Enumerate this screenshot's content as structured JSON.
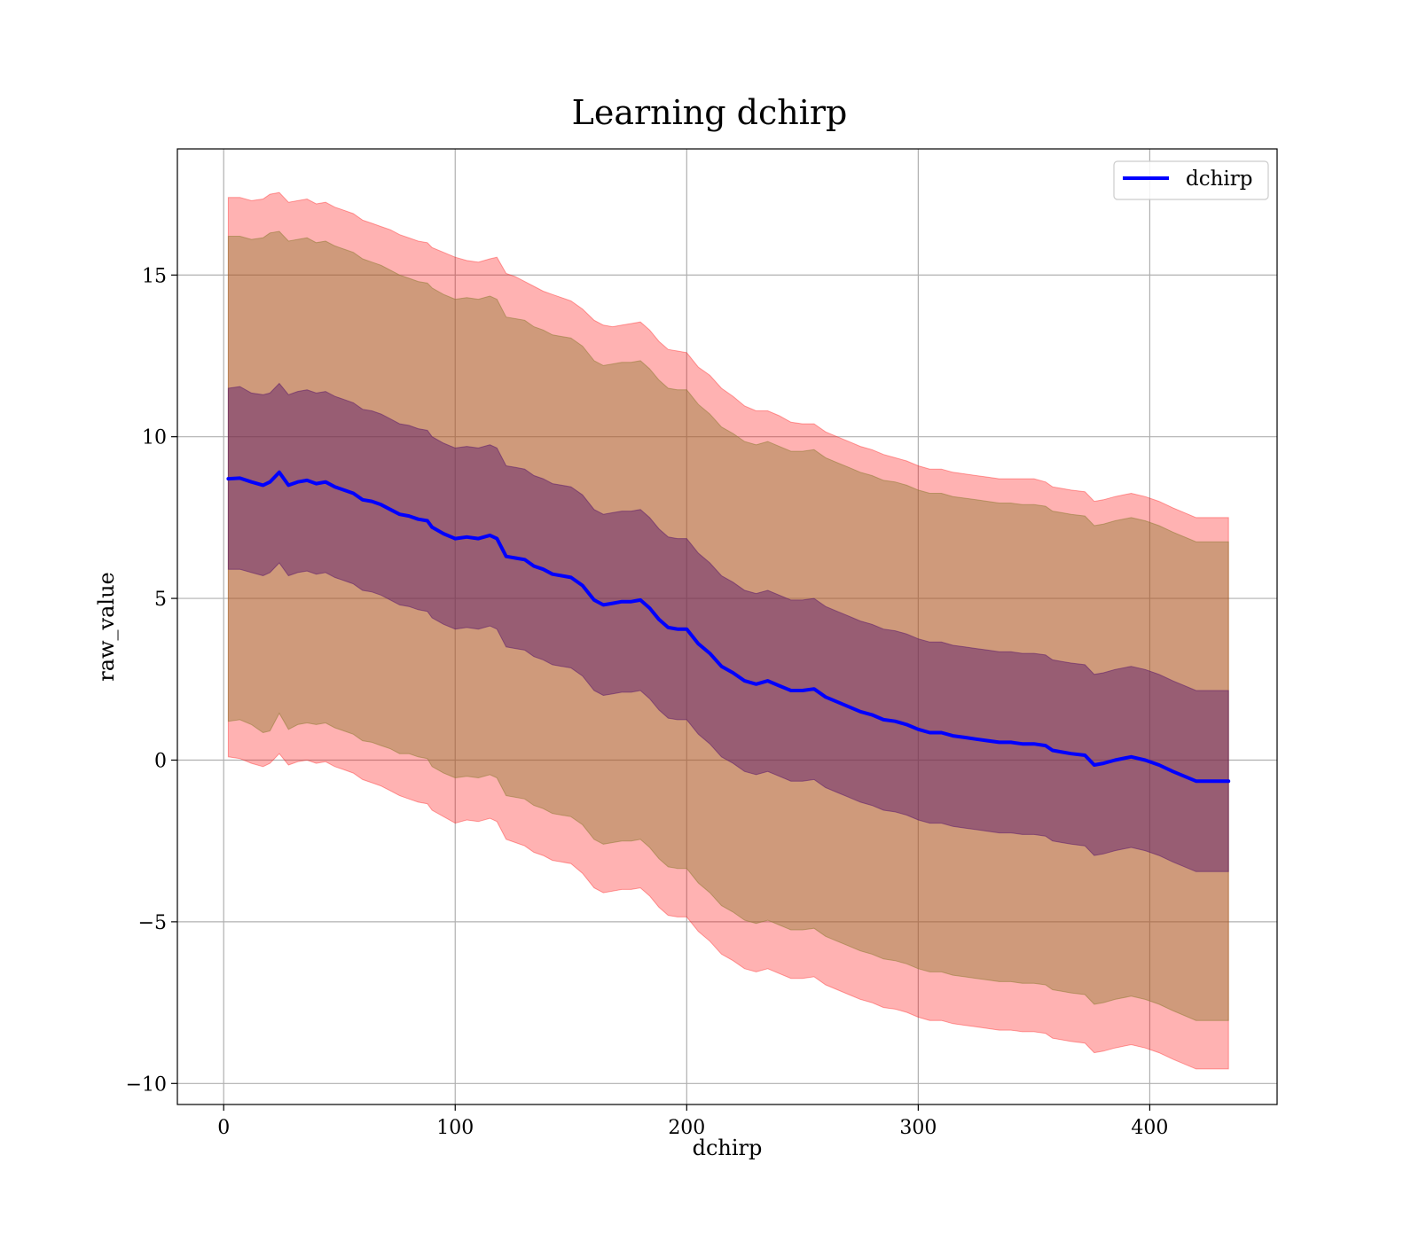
{
  "chart_data": {
    "type": "line",
    "title": "Learning dchirp",
    "xlabel": "dchirp",
    "ylabel": "raw_value",
    "xlim": [
      -20,
      455
    ],
    "ylim": [
      -10.65,
      18.9
    ],
    "xticks": [
      0,
      100,
      200,
      300,
      400
    ],
    "yticks": [
      -10,
      -5,
      0,
      5,
      10,
      15
    ],
    "xtick_labels": [
      "0",
      "100",
      "200",
      "300",
      "400"
    ],
    "ytick_labels": [
      "−10",
      "−5",
      "0",
      "5",
      "10",
      "15"
    ],
    "grid": true,
    "legend": {
      "position": "upper right",
      "entries": [
        "dchirp"
      ]
    },
    "colors": {
      "line": "#0000ff",
      "band_outer": "#ff0000",
      "band_middle": "#8c7a30",
      "band_inner": "#55146a"
    },
    "band_alpha": {
      "outer": 0.3,
      "middle": 0.42,
      "inner": 0.45
    },
    "series": [
      {
        "name": "dchirp",
        "x": [
          2,
          7,
          12,
          17,
          20,
          24,
          28,
          32,
          36,
          40,
          44,
          48,
          52,
          56,
          60,
          64,
          68,
          72,
          76,
          80,
          84,
          88,
          90,
          95,
          100,
          105,
          110,
          115,
          118,
          122,
          126,
          130,
          134,
          138,
          142,
          146,
          150,
          155,
          160,
          164,
          168,
          172,
          176,
          180,
          184,
          188,
          192,
          196,
          200,
          205,
          210,
          215,
          220,
          225,
          230,
          235,
          240,
          245,
          250,
          255,
          260,
          265,
          270,
          275,
          280,
          285,
          290,
          295,
          300,
          305,
          310,
          315,
          320,
          325,
          330,
          335,
          340,
          345,
          350,
          355,
          358,
          362,
          366,
          372,
          376,
          380,
          385,
          392,
          398,
          404,
          410,
          420,
          434
        ],
        "mean": [
          8.7,
          8.72,
          8.6,
          8.5,
          8.6,
          8.9,
          8.5,
          8.6,
          8.65,
          8.55,
          8.6,
          8.45,
          8.35,
          8.25,
          8.05,
          8.0,
          7.9,
          7.75,
          7.6,
          7.55,
          7.45,
          7.4,
          7.2,
          7.0,
          6.85,
          6.9,
          6.85,
          6.95,
          6.85,
          6.3,
          6.25,
          6.2,
          6.0,
          5.9,
          5.75,
          5.7,
          5.65,
          5.4,
          4.95,
          4.8,
          4.85,
          4.9,
          4.9,
          4.95,
          4.7,
          4.35,
          4.1,
          4.05,
          4.05,
          3.6,
          3.3,
          2.9,
          2.7,
          2.45,
          2.35,
          2.45,
          2.3,
          2.15,
          2.15,
          2.2,
          1.95,
          1.8,
          1.65,
          1.5,
          1.4,
          1.25,
          1.2,
          1.1,
          0.95,
          0.85,
          0.85,
          0.75,
          0.7,
          0.65,
          0.6,
          0.55,
          0.55,
          0.5,
          0.5,
          0.45,
          0.3,
          0.25,
          0.2,
          0.15,
          -0.15,
          -0.1,
          0.0,
          0.1,
          0.0,
          -0.15,
          -0.35,
          -0.65,
          -0.65
        ],
        "outer_upper": [
          17.4,
          17.4,
          17.3,
          17.35,
          17.5,
          17.55,
          17.25,
          17.3,
          17.35,
          17.2,
          17.25,
          17.1,
          17.0,
          16.9,
          16.7,
          16.6,
          16.5,
          16.4,
          16.25,
          16.15,
          16.05,
          16.0,
          15.85,
          15.7,
          15.55,
          15.45,
          15.4,
          15.5,
          15.55,
          15.05,
          14.95,
          14.8,
          14.65,
          14.5,
          14.4,
          14.3,
          14.2,
          13.95,
          13.6,
          13.45,
          13.4,
          13.45,
          13.5,
          13.55,
          13.3,
          12.95,
          12.7,
          12.65,
          12.6,
          12.15,
          11.9,
          11.5,
          11.25,
          10.95,
          10.8,
          10.8,
          10.65,
          10.45,
          10.4,
          10.4,
          10.15,
          10.0,
          9.85,
          9.7,
          9.6,
          9.45,
          9.35,
          9.25,
          9.1,
          9.0,
          9.0,
          8.9,
          8.85,
          8.8,
          8.75,
          8.7,
          8.7,
          8.7,
          8.7,
          8.6,
          8.45,
          8.4,
          8.35,
          8.3,
          8.0,
          8.05,
          8.15,
          8.25,
          8.15,
          8.0,
          7.8,
          7.5,
          7.5
        ],
        "outer_lower": [
          0.1,
          0.05,
          -0.1,
          -0.2,
          -0.1,
          0.2,
          -0.15,
          -0.05,
          0.0,
          -0.1,
          -0.05,
          -0.2,
          -0.3,
          -0.4,
          -0.6,
          -0.7,
          -0.8,
          -0.95,
          -1.1,
          -1.2,
          -1.3,
          -1.35,
          -1.55,
          -1.75,
          -1.95,
          -1.85,
          -1.9,
          -1.8,
          -1.9,
          -2.45,
          -2.55,
          -2.65,
          -2.85,
          -2.95,
          -3.1,
          -3.15,
          -3.2,
          -3.5,
          -3.95,
          -4.1,
          -4.05,
          -4.0,
          -4.0,
          -3.95,
          -4.2,
          -4.55,
          -4.8,
          -4.85,
          -4.85,
          -5.3,
          -5.6,
          -6.0,
          -6.2,
          -6.45,
          -6.55,
          -6.45,
          -6.6,
          -6.75,
          -6.75,
          -6.7,
          -6.95,
          -7.1,
          -7.25,
          -7.4,
          -7.5,
          -7.65,
          -7.7,
          -7.8,
          -7.95,
          -8.05,
          -8.05,
          -8.15,
          -8.2,
          -8.25,
          -8.3,
          -8.35,
          -8.35,
          -8.4,
          -8.4,
          -8.45,
          -8.6,
          -8.65,
          -8.7,
          -8.75,
          -9.05,
          -9.0,
          -8.9,
          -8.8,
          -8.9,
          -9.05,
          -9.25,
          -9.55,
          -9.55
        ],
        "middle_upper": [
          16.2,
          16.2,
          16.1,
          16.15,
          16.3,
          16.35,
          16.05,
          16.1,
          16.15,
          16.0,
          16.05,
          15.9,
          15.8,
          15.7,
          15.5,
          15.4,
          15.3,
          15.15,
          15.0,
          14.9,
          14.8,
          14.75,
          14.6,
          14.4,
          14.25,
          14.3,
          14.25,
          14.35,
          14.25,
          13.7,
          13.65,
          13.6,
          13.4,
          13.3,
          13.15,
          13.1,
          13.05,
          12.8,
          12.35,
          12.2,
          12.25,
          12.3,
          12.3,
          12.35,
          12.1,
          11.75,
          11.5,
          11.45,
          11.45,
          11.0,
          10.7,
          10.3,
          10.1,
          9.85,
          9.75,
          9.85,
          9.7,
          9.55,
          9.55,
          9.6,
          9.35,
          9.2,
          9.05,
          8.9,
          8.8,
          8.65,
          8.6,
          8.5,
          8.35,
          8.25,
          8.25,
          8.15,
          8.1,
          8.05,
          8.0,
          7.95,
          7.95,
          7.9,
          7.9,
          7.85,
          7.7,
          7.65,
          7.6,
          7.55,
          7.25,
          7.3,
          7.4,
          7.5,
          7.4,
          7.25,
          7.05,
          6.75,
          6.75
        ],
        "middle_lower": [
          1.2,
          1.25,
          1.1,
          0.85,
          0.9,
          1.45,
          0.95,
          1.1,
          1.15,
          1.1,
          1.15,
          1.0,
          0.9,
          0.8,
          0.6,
          0.55,
          0.45,
          0.35,
          0.2,
          0.2,
          0.1,
          0.05,
          -0.2,
          -0.4,
          -0.55,
          -0.5,
          -0.55,
          -0.45,
          -0.55,
          -1.1,
          -1.15,
          -1.2,
          -1.4,
          -1.5,
          -1.65,
          -1.7,
          -1.75,
          -2.0,
          -2.45,
          -2.6,
          -2.55,
          -2.5,
          -2.5,
          -2.45,
          -2.7,
          -3.05,
          -3.3,
          -3.35,
          -3.35,
          -3.8,
          -4.1,
          -4.5,
          -4.7,
          -4.95,
          -5.05,
          -4.95,
          -5.1,
          -5.25,
          -5.25,
          -5.2,
          -5.45,
          -5.6,
          -5.75,
          -5.9,
          -6.0,
          -6.15,
          -6.2,
          -6.3,
          -6.45,
          -6.55,
          -6.55,
          -6.65,
          -6.7,
          -6.75,
          -6.8,
          -6.85,
          -6.85,
          -6.9,
          -6.9,
          -6.95,
          -7.1,
          -7.15,
          -7.2,
          -7.25,
          -7.55,
          -7.5,
          -7.4,
          -7.3,
          -7.4,
          -7.55,
          -7.75,
          -8.05,
          -8.05
        ],
        "inner_upper": [
          11.5,
          11.55,
          11.35,
          11.3,
          11.35,
          11.65,
          11.3,
          11.4,
          11.45,
          11.35,
          11.4,
          11.25,
          11.15,
          11.05,
          10.85,
          10.8,
          10.7,
          10.55,
          10.4,
          10.35,
          10.25,
          10.2,
          10.0,
          9.8,
          9.65,
          9.7,
          9.65,
          9.75,
          9.65,
          9.1,
          9.05,
          9.0,
          8.8,
          8.7,
          8.55,
          8.5,
          8.45,
          8.2,
          7.75,
          7.6,
          7.65,
          7.7,
          7.7,
          7.75,
          7.5,
          7.15,
          6.9,
          6.85,
          6.85,
          6.4,
          6.1,
          5.7,
          5.5,
          5.25,
          5.15,
          5.25,
          5.1,
          4.95,
          4.95,
          5.0,
          4.75,
          4.6,
          4.45,
          4.3,
          4.2,
          4.05,
          4.0,
          3.9,
          3.75,
          3.65,
          3.65,
          3.55,
          3.5,
          3.45,
          3.4,
          3.35,
          3.35,
          3.3,
          3.3,
          3.25,
          3.1,
          3.05,
          3.0,
          2.95,
          2.65,
          2.7,
          2.8,
          2.9,
          2.8,
          2.65,
          2.45,
          2.15,
          2.15
        ],
        "inner_lower": [
          5.9,
          5.9,
          5.8,
          5.7,
          5.8,
          6.1,
          5.7,
          5.8,
          5.85,
          5.75,
          5.8,
          5.65,
          5.55,
          5.45,
          5.25,
          5.2,
          5.1,
          4.95,
          4.8,
          4.75,
          4.65,
          4.6,
          4.4,
          4.2,
          4.05,
          4.1,
          4.05,
          4.15,
          4.05,
          3.5,
          3.45,
          3.4,
          3.2,
          3.1,
          2.95,
          2.9,
          2.85,
          2.6,
          2.15,
          2.0,
          2.05,
          2.1,
          2.1,
          2.15,
          1.9,
          1.55,
          1.3,
          1.25,
          1.25,
          0.8,
          0.5,
          0.1,
          -0.1,
          -0.35,
          -0.45,
          -0.35,
          -0.5,
          -0.65,
          -0.65,
          -0.6,
          -0.85,
          -1.0,
          -1.15,
          -1.3,
          -1.4,
          -1.55,
          -1.6,
          -1.7,
          -1.85,
          -1.95,
          -1.95,
          -2.05,
          -2.1,
          -2.15,
          -2.2,
          -2.25,
          -2.25,
          -2.3,
          -2.3,
          -2.35,
          -2.5,
          -2.55,
          -2.6,
          -2.65,
          -2.95,
          -2.9,
          -2.8,
          -2.7,
          -2.8,
          -2.95,
          -3.15,
          -3.45,
          -3.45
        ]
      }
    ]
  }
}
